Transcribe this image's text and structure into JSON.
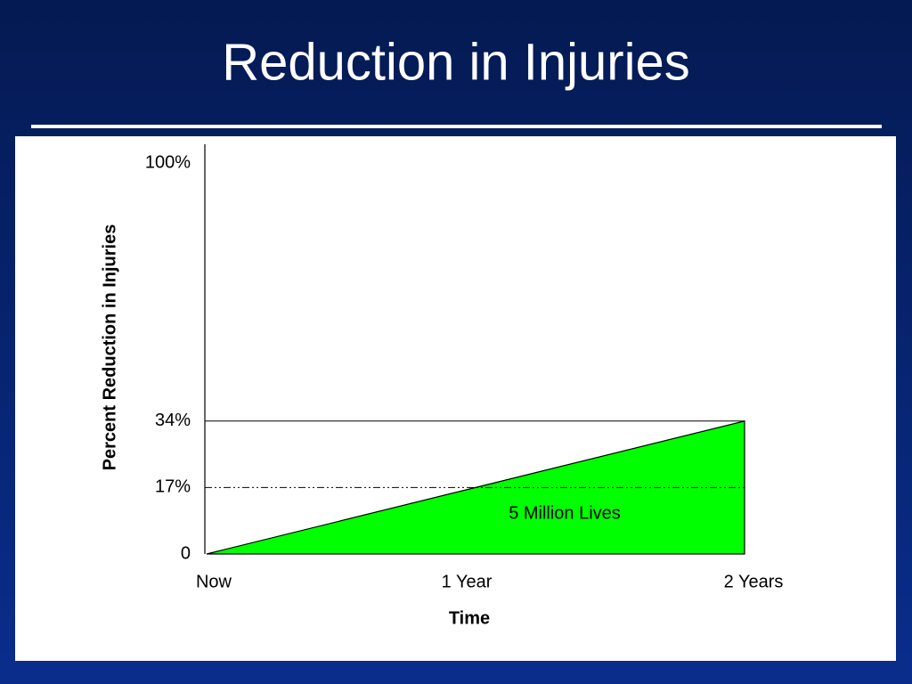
{
  "chart_data": {
    "type": "area",
    "title": "Reduction in Injuries",
    "x_label": "Time",
    "y_label": "Percent Reduction in Injuries",
    "categories": [
      "Now",
      "1 Year",
      "2 Years"
    ],
    "values": [
      0,
      17,
      34
    ],
    "color": "#00ff00",
    "ylim": [
      0,
      100
    ],
    "yticks": [
      0,
      {
        "value": 17,
        "label": "17%"
      },
      {
        "value": 34,
        "label": "34%"
      },
      {
        "value": 100,
        "label": "100%"
      }
    ],
    "annotation": "5 Million Lives"
  }
}
